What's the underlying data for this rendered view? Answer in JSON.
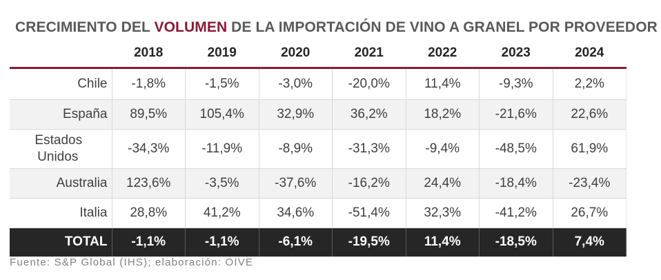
{
  "title": {
    "prefix": "CRECIMIENTO DEL ",
    "accent": "VOLUMEN",
    "suffix": " DE LA IMPORTACIÓN DE VINO A GRANEL POR PROVEEDOR"
  },
  "colors": {
    "accent": "#8b1a34",
    "total_row_bg": "#262626",
    "alt_row_bg": "#f2f2f2"
  },
  "chart_data": {
    "type": "table",
    "columns": [
      "2018",
      "2019",
      "2020",
      "2021",
      "2022",
      "2023",
      "2024"
    ],
    "rows": [
      {
        "label": "Chile",
        "values": [
          "-1,8%",
          "-1,5%",
          "-3,0%",
          "-20,0%",
          "11,4%",
          "-9,3%",
          "2,2%"
        ]
      },
      {
        "label": "España",
        "values": [
          "89,5%",
          "105,4%",
          "32,9%",
          "36,2%",
          "18,2%",
          "-21,6%",
          "22,6%"
        ]
      },
      {
        "label": "Estados Unidos",
        "values": [
          "-34,3%",
          "-11,9%",
          "-8,9%",
          "-31,3%",
          "-9,4%",
          "-48,5%",
          "61,9%"
        ]
      },
      {
        "label": "Australia",
        "values": [
          "123,6%",
          "-3,5%",
          "-37,6%",
          "-16,2%",
          "24,4%",
          "-18,4%",
          "-23,4%"
        ]
      },
      {
        "label": "Italia",
        "values": [
          "28,8%",
          "41,2%",
          "34,6%",
          "-51,4%",
          "32,3%",
          "-41,2%",
          "26,7%"
        ]
      }
    ],
    "total": {
      "label": "TOTAL",
      "values": [
        "-1,1%",
        "-1,1%",
        "-6,1%",
        "-19,5%",
        "11,4%",
        "-18,5%",
        "7,4%"
      ]
    }
  },
  "source": "Fuente: S&P Global (IHS); elaboración: OIVE"
}
